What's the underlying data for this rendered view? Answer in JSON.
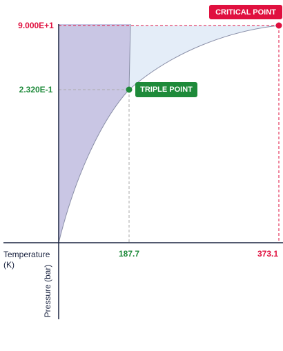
{
  "axes": {
    "x_label": "Temperature (K)",
    "x_label_lines": [
      "Temperature",
      "(K)"
    ],
    "y_label": "Pressure (bar)"
  },
  "critical_point": {
    "label": "CRITICAL POINT",
    "temperature": "373.1",
    "pressure": "9.000E+1"
  },
  "triple_point": {
    "label": "TRIPLE POINT",
    "temperature": "187.7",
    "pressure": "2.320E-1"
  }
}
